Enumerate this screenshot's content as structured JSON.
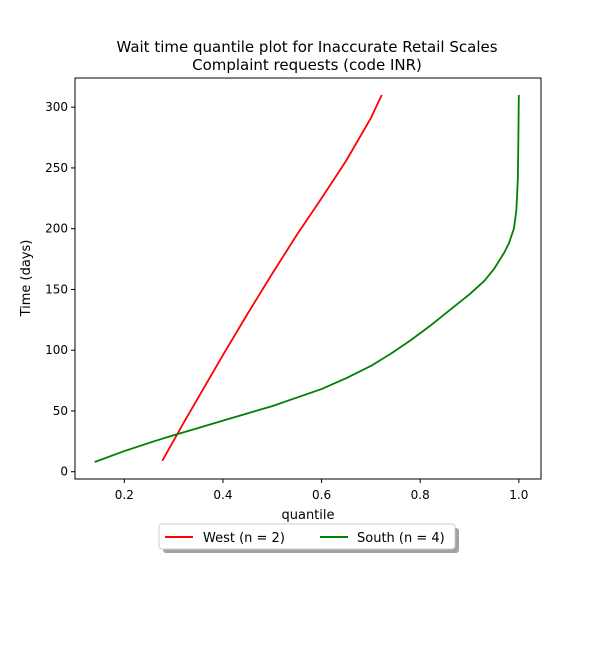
{
  "chart_data": {
    "type": "line",
    "title_lines": [
      "Wait time quantile plot for Inaccurate Retail Scales",
      "Complaint  requests (code INR)"
    ],
    "xlabel": "quantile",
    "ylabel": "Time (days)",
    "xlim": [
      0.1,
      1.045
    ],
    "ylim": [
      -6,
      324
    ],
    "xticks": [
      0.2,
      0.4,
      0.6,
      0.8,
      1.0
    ],
    "xtick_labels": [
      "0.2",
      "0.4",
      "0.6",
      "0.8",
      "1.0"
    ],
    "yticks": [
      0,
      50,
      100,
      150,
      200,
      250,
      300
    ],
    "ytick_labels": [
      "0",
      "50",
      "100",
      "150",
      "200",
      "250",
      "300"
    ],
    "grid": false,
    "legend_position": "bottom-center-below-axes",
    "series": [
      {
        "name": "West (n = 2)",
        "color": "#ff0000",
        "points": [
          [
            0.277,
            9
          ],
          [
            0.32,
            40
          ],
          [
            0.36,
            68
          ],
          [
            0.4,
            96
          ],
          [
            0.45,
            130
          ],
          [
            0.5,
            163
          ],
          [
            0.55,
            195
          ],
          [
            0.6,
            225
          ],
          [
            0.65,
            256
          ],
          [
            0.7,
            291
          ],
          [
            0.722,
            310
          ]
        ]
      },
      {
        "name": "South (n = 4)",
        "color": "#008000",
        "points": [
          [
            0.14,
            8
          ],
          [
            0.2,
            17
          ],
          [
            0.26,
            25
          ],
          [
            0.3,
            30
          ],
          [
            0.35,
            36
          ],
          [
            0.4,
            42
          ],
          [
            0.45,
            48
          ],
          [
            0.5,
            54
          ],
          [
            0.55,
            61
          ],
          [
            0.6,
            68
          ],
          [
            0.65,
            77
          ],
          [
            0.7,
            87
          ],
          [
            0.74,
            97
          ],
          [
            0.78,
            108
          ],
          [
            0.82,
            120
          ],
          [
            0.86,
            133
          ],
          [
            0.9,
            146
          ],
          [
            0.93,
            157
          ],
          [
            0.95,
            167
          ],
          [
            0.97,
            180
          ],
          [
            0.98,
            188
          ],
          [
            0.99,
            200
          ],
          [
            0.995,
            215
          ],
          [
            0.998,
            240
          ],
          [
            0.999,
            270
          ],
          [
            1.0,
            310
          ]
        ]
      }
    ]
  }
}
